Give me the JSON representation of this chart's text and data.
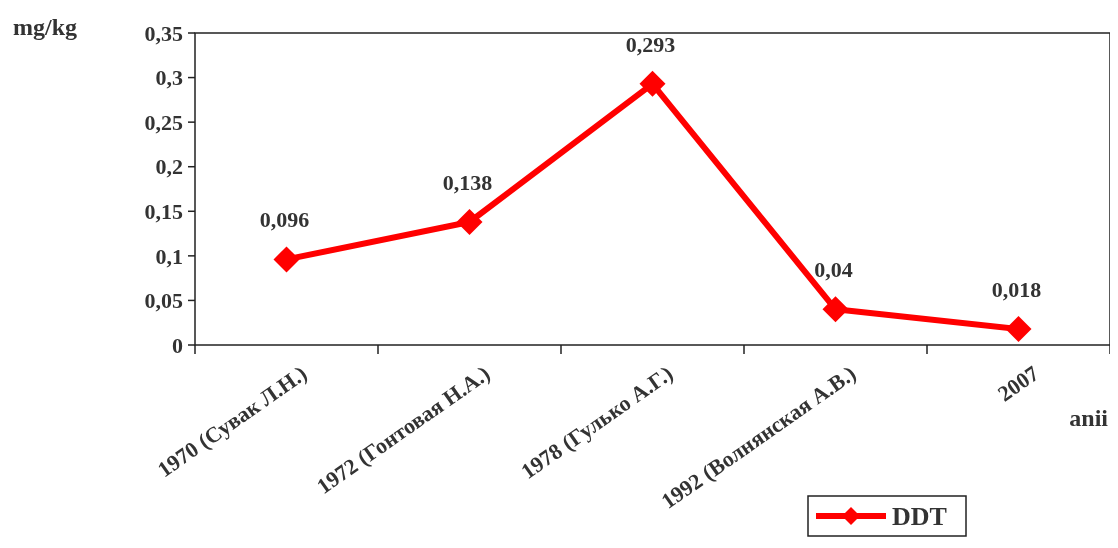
{
  "chart_data": {
    "type": "line",
    "ylabel": "mg/kg",
    "xlabel": "anii",
    "categories": [
      "1970 (Сувак Л.Н.)",
      "1972 (Гонтовая Н.А.)",
      "1978 (Гулько А.Г.)",
      "1992 (Волнянская А.В.)",
      "2007"
    ],
    "series": [
      {
        "name": "DDT",
        "color": "#ff0000",
        "values": [
          0.096,
          0.138,
          0.293,
          0.04,
          0.018
        ],
        "value_labels": [
          "0,096",
          "0,138",
          "0,293",
          "0,04",
          "0,018"
        ]
      }
    ],
    "ylim": [
      0,
      0.35
    ],
    "yticks": [
      {
        "value": 0,
        "label": "0"
      },
      {
        "value": 0.05,
        "label": "0,05"
      },
      {
        "value": 0.1,
        "label": "0,1"
      },
      {
        "value": 0.15,
        "label": "0,15"
      },
      {
        "value": 0.2,
        "label": "0,2"
      },
      {
        "value": 0.25,
        "label": "0,25"
      },
      {
        "value": 0.3,
        "label": "0,3"
      },
      {
        "value": 0.35,
        "label": "0,35"
      }
    ],
    "grid": false,
    "legend": "bottom right",
    "marker": "diamond",
    "line_style": "solid"
  }
}
